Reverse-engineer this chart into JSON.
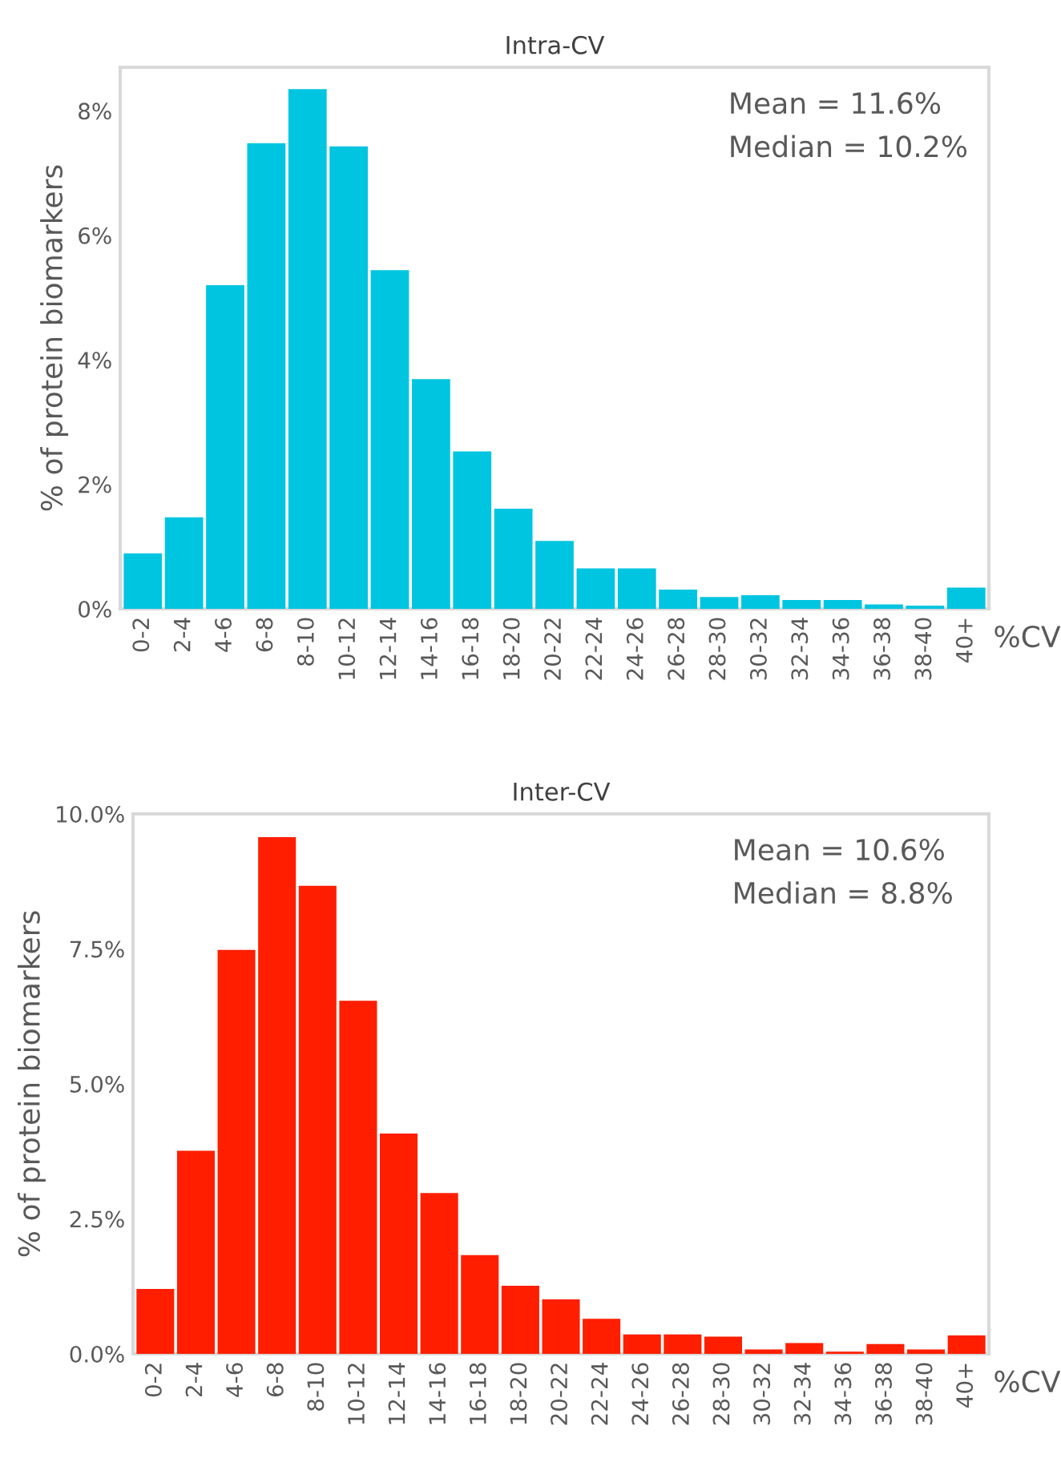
{
  "chart_data": [
    {
      "type": "bar",
      "title": "Intra-CV",
      "xlabel": "%CV",
      "ylabel": "% of protein biomarkers",
      "categories": [
        "0-2",
        "2-4",
        "4-6",
        "6-8",
        "8-10",
        "10-12",
        "12-14",
        "14-16",
        "16-18",
        "18-20",
        "20-22",
        "22-24",
        "24-26",
        "26-28",
        "28-30",
        "30-32",
        "32-34",
        "34-36",
        "36-38",
        "38-40",
        "40+"
      ],
      "values": [
        0.89,
        1.47,
        5.2,
        7.48,
        8.35,
        7.43,
        5.44,
        3.69,
        2.53,
        1.61,
        1.09,
        0.65,
        0.65,
        0.31,
        0.19,
        0.22,
        0.14,
        0.14,
        0.07,
        0.05,
        0.34
      ],
      "color": "#00c5e0",
      "ylim": [
        0,
        8.7
      ],
      "yticks": [
        {
          "value": 0,
          "label": "0%"
        },
        {
          "value": 2,
          "label": "2%"
        },
        {
          "value": 4,
          "label": "4%"
        },
        {
          "value": 6,
          "label": "6%"
        },
        {
          "value": 8,
          "label": "8%"
        }
      ],
      "annotations": [
        "Mean = 11.6%",
        "Median = 10.2%"
      ],
      "grid": false,
      "legend": false
    },
    {
      "type": "bar",
      "title": "Inter-CV",
      "xlabel": "%CV",
      "ylabel": "% of protein biomarkers",
      "categories": [
        "0-2",
        "2-4",
        "4-6",
        "6-8",
        "8-10",
        "10-12",
        "12-14",
        "14-16",
        "16-18",
        "18-20",
        "20-22",
        "22-24",
        "24-26",
        "26-28",
        "28-30",
        "30-32",
        "32-34",
        "34-36",
        "36-38",
        "38-40",
        "40+"
      ],
      "values": [
        1.2,
        3.76,
        7.48,
        9.57,
        8.67,
        6.54,
        4.08,
        2.98,
        1.83,
        1.26,
        1.01,
        0.65,
        0.36,
        0.36,
        0.32,
        0.08,
        0.2,
        0.04,
        0.18,
        0.08,
        0.34
      ],
      "color": "#ff1e00",
      "ylim": [
        0,
        10
      ],
      "yticks": [
        {
          "value": 0,
          "label": "0.0%"
        },
        {
          "value": 2.5,
          "label": "2.5%"
        },
        {
          "value": 5,
          "label": "5.0%"
        },
        {
          "value": 7.5,
          "label": "7.5%"
        },
        {
          "value": 10,
          "label": "10.0%"
        }
      ],
      "annotations": [
        "Mean = 10.6%",
        "Median = 8.8%"
      ],
      "grid": false,
      "legend": false
    }
  ]
}
